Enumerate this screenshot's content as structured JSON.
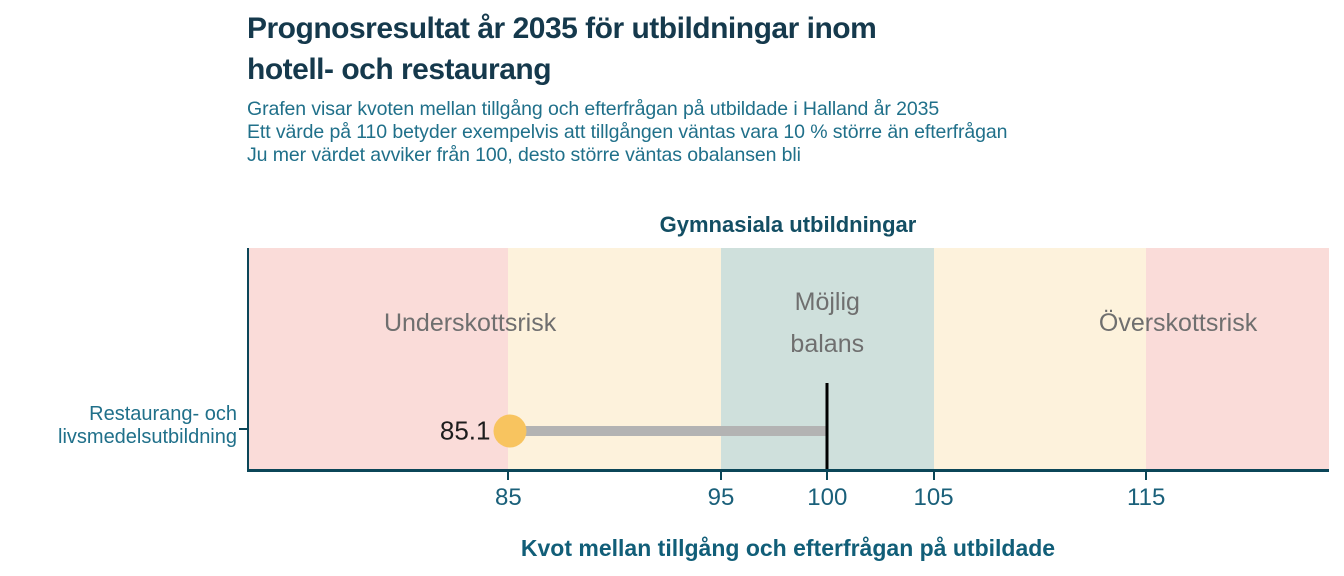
{
  "header": {
    "title_lines": [
      "Prognosresultat år 2035 för utbildningar inom",
      "hotell- och restaurang"
    ],
    "subtitle_lines": [
      "Grafen visar kvoten mellan tillgång och efterfrågan på utbildade i Halland år 2035",
      "Ett värde på 110 betyder exempelvis att tillgången väntas vara 10 % större än efterfrågan",
      "Ju mer värdet avviker från 100, desto större väntas obalansen bli"
    ]
  },
  "chart_data": {
    "type": "scatter",
    "subtype": "dot-with-interval-bar",
    "title": "Gymnasiala utbildningar",
    "xlabel": "Kvot mellan tillgång och efterfrågan på utbildade",
    "ylabel": "",
    "xlim": [
      72.8,
      123.6
    ],
    "xticks": [
      85,
      95,
      100,
      105,
      115
    ],
    "reference_line_x": 100,
    "grid": false,
    "legend": false,
    "zones": [
      {
        "label": "Underskottsrisk",
        "from": 72.8,
        "to": 85,
        "color": "#fadcd9",
        "label_x": 83.2
      },
      {
        "label": "",
        "from": 85,
        "to": 95,
        "color": "#fdf2dc",
        "label_x": 90
      },
      {
        "label": "Möjlig\nbalans",
        "from": 95,
        "to": 105,
        "color": "#cfe0dc",
        "label_x": 100
      },
      {
        "label": "",
        "from": 105,
        "to": 115,
        "color": "#fdf2dc",
        "label_x": 110
      },
      {
        "label": "Överskottsrisk",
        "from": 115,
        "to": 123.6,
        "color": "#fadcd9",
        "label_x": 116.5
      }
    ],
    "rows": [
      {
        "category": "Restaurang- och livsmedelsutbildning",
        "value": 85.1,
        "value_label": "85.1",
        "interval_from": 85.1,
        "interval_to": 100,
        "dot_color": "#f8c45f",
        "bar_color": "#b3b3b3"
      }
    ],
    "colors": {
      "axis": "#0b4658",
      "tick_label": "#1a607a",
      "zone_label": "#6f6f6f",
      "title": "#15394c",
      "subtitle": "#20708a",
      "reference_line": "#000000"
    }
  }
}
